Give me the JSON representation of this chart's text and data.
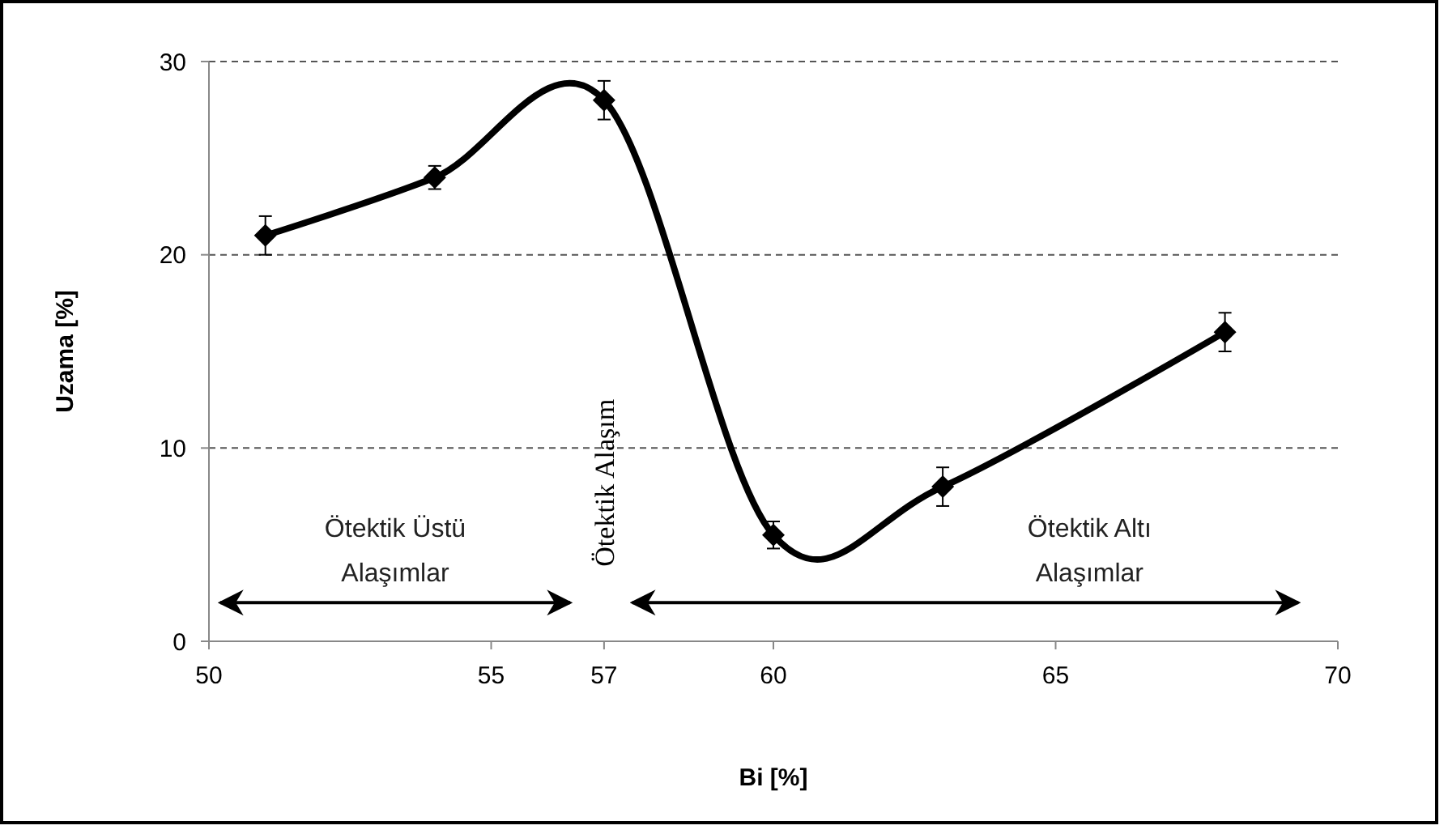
{
  "chart_data": {
    "type": "line",
    "xlabel": "Bi [%]",
    "ylabel": "Uzama [%]",
    "x": [
      51,
      54,
      57,
      60,
      63,
      68
    ],
    "series": [
      {
        "color": "#000000",
        "values": [
          21,
          24,
          28,
          5.5,
          8,
          16
        ],
        "errors": [
          1,
          0.6,
          1,
          0.7,
          1,
          1
        ]
      }
    ],
    "xlim": [
      50,
      70
    ],
    "xticks": [
      50,
      55,
      57,
      60,
      65,
      70
    ],
    "ylim": [
      0,
      30
    ],
    "yticks": [
      0,
      10,
      20,
      30
    ],
    "grid": "y",
    "marker": "diamond",
    "line_style": "solid",
    "annotations": [
      "Ötektik Üstü\nAlaşımlar",
      "Ötektik Alaşım",
      "Ötektik Altı\nAlaşımlar"
    ]
  }
}
